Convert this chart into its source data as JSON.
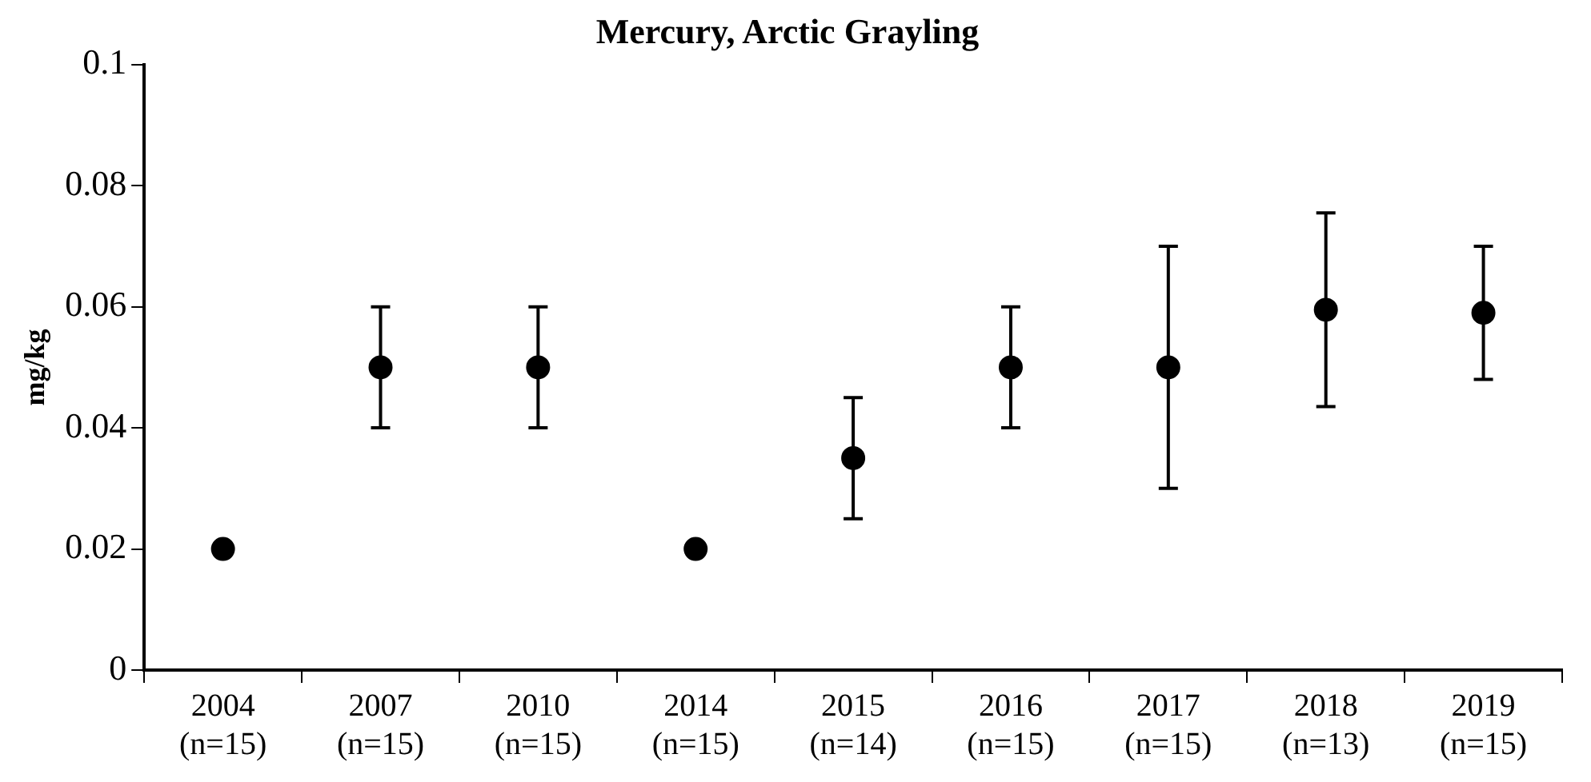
{
  "chart_data": {
    "type": "scatter",
    "title": "Mercury, Arctic Grayling",
    "ylabel": "mg/kg",
    "categories": [
      "2004\n(n=15)",
      "2007\n(n=15)",
      "2010\n(n=15)",
      "2014\n(n=15)",
      "2015\n(n=14)",
      "2016\n(n=15)",
      "2017\n(n=15)",
      "2018\n(n=13)",
      "2019\n(n=15)"
    ],
    "values": [
      0.02,
      0.05,
      0.05,
      0.02,
      0.035,
      0.05,
      0.05,
      0.0595,
      0.059
    ],
    "errors": [
      null,
      [
        0.04,
        0.06
      ],
      [
        0.04,
        0.06
      ],
      null,
      [
        0.025,
        0.045
      ],
      [
        0.04,
        0.06
      ],
      [
        0.03,
        0.07
      ],
      [
        0.0435,
        0.0755
      ],
      [
        0.048,
        0.07
      ]
    ],
    "color": "#000000",
    "marker": "circle",
    "ylim": [
      0,
      0.1
    ],
    "yticks": [
      0,
      0.02,
      0.04,
      0.06,
      0.08,
      0.1
    ],
    "grid": false,
    "legend": false
  }
}
